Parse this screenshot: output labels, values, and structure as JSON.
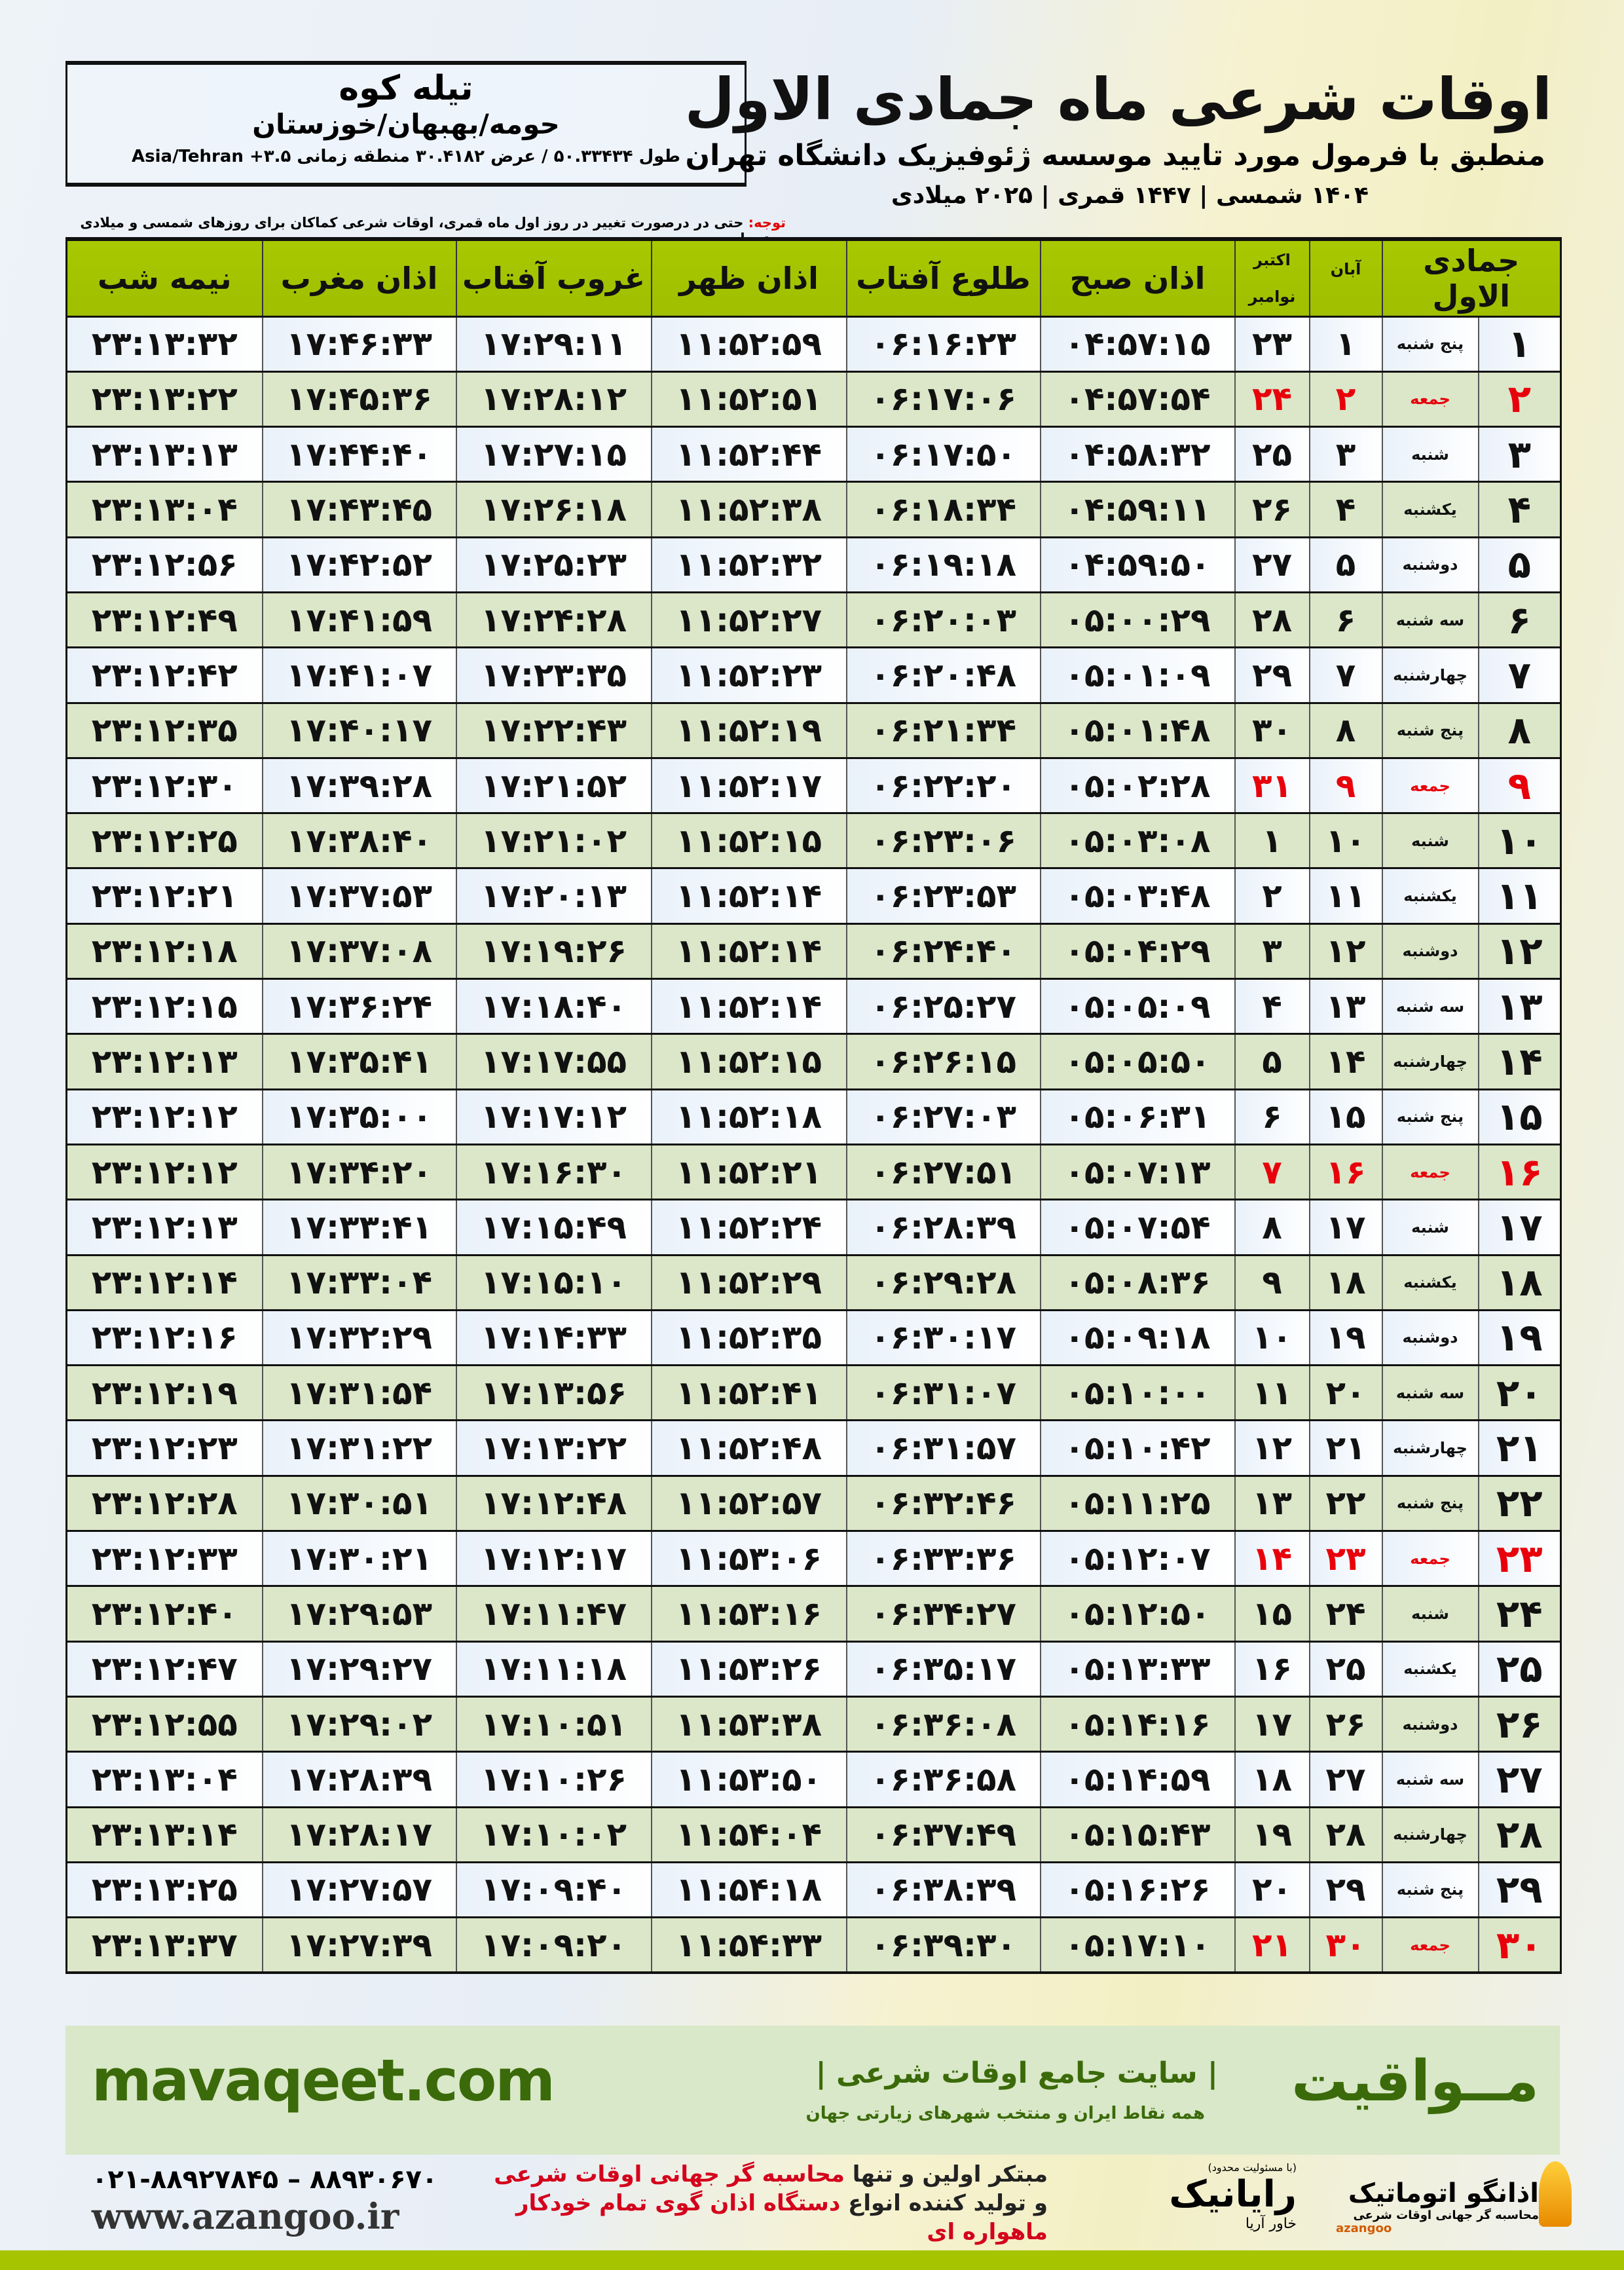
{
  "location": {
    "city": "تیله کوه",
    "region": "حومه/بهبهان/خوزستان",
    "coords": "طول ۵۰.۳۳۴۳۴ / عرض ۳۰.۴۱۸۲ منطقه زمانی ۳.۵+ Asia/Tehran"
  },
  "header": {
    "title": "اوقات شرعی ماه جمادی الاول",
    "subtitle": "منطبق با فرمول مورد تایید موسسه ژئوفیزیک دانشگاه تهران",
    "dateline": "۱۴۰۴ شمسی | ۱۴۴۷ قمری | ۲۰۲۵ میلادی"
  },
  "note": {
    "label": "توجه:",
    "text": " حتی در درصورت تغییر در روز اول ماه قمری، اوقات شرعی کماکان برای روزهای شمسی و میلادی معتبر است."
  },
  "table": {
    "columns": {
      "hijri": "جمادی الاول",
      "aban": "آبان",
      "greg_top": "اکتبر",
      "greg_bottom": "نوامبر",
      "fajr": "اذان صبح",
      "sunrise": "طلوع آفتاب",
      "dhuhr": "اذان ظهر",
      "sunset": "غروب آفتاب",
      "maghrib": "اذان مغرب",
      "midnight": "نیمه شب"
    },
    "holiday_color": "#e8000b",
    "rows": [
      [
        "۱",
        "پنج شنبه",
        "۱",
        "۲۳",
        "۰۴:۵۷:۱۵",
        "۰۶:۱۶:۲۳",
        "۱۱:۵۲:۵۹",
        "۱۷:۲۹:۱۱",
        "۱۷:۴۶:۳۳",
        "۲۳:۱۳:۳۲",
        false
      ],
      [
        "۲",
        "جمعه",
        "۲",
        "۲۴",
        "۰۴:۵۷:۵۴",
        "۰۶:۱۷:۰۶",
        "۱۱:۵۲:۵۱",
        "۱۷:۲۸:۱۲",
        "۱۷:۴۵:۳۶",
        "۲۳:۱۳:۲۲",
        true
      ],
      [
        "۳",
        "شنبه",
        "۳",
        "۲۵",
        "۰۴:۵۸:۳۲",
        "۰۶:۱۷:۵۰",
        "۱۱:۵۲:۴۴",
        "۱۷:۲۷:۱۵",
        "۱۷:۴۴:۴۰",
        "۲۳:۱۳:۱۳",
        false
      ],
      [
        "۴",
        "یکشنبه",
        "۴",
        "۲۶",
        "۰۴:۵۹:۱۱",
        "۰۶:۱۸:۳۴",
        "۱۱:۵۲:۳۸",
        "۱۷:۲۶:۱۸",
        "۱۷:۴۳:۴۵",
        "۲۳:۱۳:۰۴",
        false
      ],
      [
        "۵",
        "دوشنبه",
        "۵",
        "۲۷",
        "۰۴:۵۹:۵۰",
        "۰۶:۱۹:۱۸",
        "۱۱:۵۲:۳۲",
        "۱۷:۲۵:۲۳",
        "۱۷:۴۲:۵۲",
        "۲۳:۱۲:۵۶",
        false
      ],
      [
        "۶",
        "سه شنبه",
        "۶",
        "۲۸",
        "۰۵:۰۰:۲۹",
        "۰۶:۲۰:۰۳",
        "۱۱:۵۲:۲۷",
        "۱۷:۲۴:۲۸",
        "۱۷:۴۱:۵۹",
        "۲۳:۱۲:۴۹",
        false
      ],
      [
        "۷",
        "چهارشنبه",
        "۷",
        "۲۹",
        "۰۵:۰۱:۰۹",
        "۰۶:۲۰:۴۸",
        "۱۱:۵۲:۲۳",
        "۱۷:۲۳:۳۵",
        "۱۷:۴۱:۰۷",
        "۲۳:۱۲:۴۲",
        false
      ],
      [
        "۸",
        "پنج شنبه",
        "۸",
        "۳۰",
        "۰۵:۰۱:۴۸",
        "۰۶:۲۱:۳۴",
        "۱۱:۵۲:۱۹",
        "۱۷:۲۲:۴۳",
        "۱۷:۴۰:۱۷",
        "۲۳:۱۲:۳۵",
        false
      ],
      [
        "۹",
        "جمعه",
        "۹",
        "۳۱",
        "۰۵:۰۲:۲۸",
        "۰۶:۲۲:۲۰",
        "۱۱:۵۲:۱۷",
        "۱۷:۲۱:۵۲",
        "۱۷:۳۹:۲۸",
        "۲۳:۱۲:۳۰",
        true
      ],
      [
        "۱۰",
        "شنبه",
        "۱۰",
        "۱",
        "۰۵:۰۳:۰۸",
        "۰۶:۲۳:۰۶",
        "۱۱:۵۲:۱۵",
        "۱۷:۲۱:۰۲",
        "۱۷:۳۸:۴۰",
        "۲۳:۱۲:۲۵",
        false
      ],
      [
        "۱۱",
        "یکشنبه",
        "۱۱",
        "۲",
        "۰۵:۰۳:۴۸",
        "۰۶:۲۳:۵۳",
        "۱۱:۵۲:۱۴",
        "۱۷:۲۰:۱۳",
        "۱۷:۳۷:۵۳",
        "۲۳:۱۲:۲۱",
        false
      ],
      [
        "۱۲",
        "دوشنبه",
        "۱۲",
        "۳",
        "۰۵:۰۴:۲۹",
        "۰۶:۲۴:۴۰",
        "۱۱:۵۲:۱۴",
        "۱۷:۱۹:۲۶",
        "۱۷:۳۷:۰۸",
        "۲۳:۱۲:۱۸",
        false
      ],
      [
        "۱۳",
        "سه شنبه",
        "۱۳",
        "۴",
        "۰۵:۰۵:۰۹",
        "۰۶:۲۵:۲۷",
        "۱۱:۵۲:۱۴",
        "۱۷:۱۸:۴۰",
        "۱۷:۳۶:۲۴",
        "۲۳:۱۲:۱۵",
        false
      ],
      [
        "۱۴",
        "چهارشنبه",
        "۱۴",
        "۵",
        "۰۵:۰۵:۵۰",
        "۰۶:۲۶:۱۵",
        "۱۱:۵۲:۱۵",
        "۱۷:۱۷:۵۵",
        "۱۷:۳۵:۴۱",
        "۲۳:۱۲:۱۳",
        false
      ],
      [
        "۱۵",
        "پنج شنبه",
        "۱۵",
        "۶",
        "۰۵:۰۶:۳۱",
        "۰۶:۲۷:۰۳",
        "۱۱:۵۲:۱۸",
        "۱۷:۱۷:۱۲",
        "۱۷:۳۵:۰۰",
        "۲۳:۱۲:۱۲",
        false
      ],
      [
        "۱۶",
        "جمعه",
        "۱۶",
        "۷",
        "۰۵:۰۷:۱۳",
        "۰۶:۲۷:۵۱",
        "۱۱:۵۲:۲۱",
        "۱۷:۱۶:۳۰",
        "۱۷:۳۴:۲۰",
        "۲۳:۱۲:۱۲",
        true
      ],
      [
        "۱۷",
        "شنبه",
        "۱۷",
        "۸",
        "۰۵:۰۷:۵۴",
        "۰۶:۲۸:۳۹",
        "۱۱:۵۲:۲۴",
        "۱۷:۱۵:۴۹",
        "۱۷:۳۳:۴۱",
        "۲۳:۱۲:۱۳",
        false
      ],
      [
        "۱۸",
        "یکشنبه",
        "۱۸",
        "۹",
        "۰۵:۰۸:۳۶",
        "۰۶:۲۹:۲۸",
        "۱۱:۵۲:۲۹",
        "۱۷:۱۵:۱۰",
        "۱۷:۳۳:۰۴",
        "۲۳:۱۲:۱۴",
        false
      ],
      [
        "۱۹",
        "دوشنبه",
        "۱۹",
        "۱۰",
        "۰۵:۰۹:۱۸",
        "۰۶:۳۰:۱۷",
        "۱۱:۵۲:۳۵",
        "۱۷:۱۴:۳۳",
        "۱۷:۳۲:۲۹",
        "۲۳:۱۲:۱۶",
        false
      ],
      [
        "۲۰",
        "سه شنبه",
        "۲۰",
        "۱۱",
        "۰۵:۱۰:۰۰",
        "۰۶:۳۱:۰۷",
        "۱۱:۵۲:۴۱",
        "۱۷:۱۳:۵۶",
        "۱۷:۳۱:۵۴",
        "۲۳:۱۲:۱۹",
        false
      ],
      [
        "۲۱",
        "چهارشنبه",
        "۲۱",
        "۱۲",
        "۰۵:۱۰:۴۲",
        "۰۶:۳۱:۵۷",
        "۱۱:۵۲:۴۸",
        "۱۷:۱۳:۲۲",
        "۱۷:۳۱:۲۲",
        "۲۳:۱۲:۲۳",
        false
      ],
      [
        "۲۲",
        "پنج شنبه",
        "۲۲",
        "۱۳",
        "۰۵:۱۱:۲۵",
        "۰۶:۳۲:۴۶",
        "۱۱:۵۲:۵۷",
        "۱۷:۱۲:۴۸",
        "۱۷:۳۰:۵۱",
        "۲۳:۱۲:۲۸",
        false
      ],
      [
        "۲۳",
        "جمعه",
        "۲۳",
        "۱۴",
        "۰۵:۱۲:۰۷",
        "۰۶:۳۳:۳۶",
        "۱۱:۵۳:۰۶",
        "۱۷:۱۲:۱۷",
        "۱۷:۳۰:۲۱",
        "۲۳:۱۲:۳۳",
        true
      ],
      [
        "۲۴",
        "شنبه",
        "۲۴",
        "۱۵",
        "۰۵:۱۲:۵۰",
        "۰۶:۳۴:۲۷",
        "۱۱:۵۳:۱۶",
        "۱۷:۱۱:۴۷",
        "۱۷:۲۹:۵۳",
        "۲۳:۱۲:۴۰",
        false
      ],
      [
        "۲۵",
        "یکشنبه",
        "۲۵",
        "۱۶",
        "۰۵:۱۳:۳۳",
        "۰۶:۳۵:۱۷",
        "۱۱:۵۳:۲۶",
        "۱۷:۱۱:۱۸",
        "۱۷:۲۹:۲۷",
        "۲۳:۱۲:۴۷",
        false
      ],
      [
        "۲۶",
        "دوشنبه",
        "۲۶",
        "۱۷",
        "۰۵:۱۴:۱۶",
        "۰۶:۳۶:۰۸",
        "۱۱:۵۳:۳۸",
        "۱۷:۱۰:۵۱",
        "۱۷:۲۹:۰۲",
        "۲۳:۱۲:۵۵",
        false
      ],
      [
        "۲۷",
        "سه شنبه",
        "۲۷",
        "۱۸",
        "۰۵:۱۴:۵۹",
        "۰۶:۳۶:۵۸",
        "۱۱:۵۳:۵۰",
        "۱۷:۱۰:۲۶",
        "۱۷:۲۸:۳۹",
        "۲۳:۱۳:۰۴",
        false
      ],
      [
        "۲۸",
        "چهارشنبه",
        "۲۸",
        "۱۹",
        "۰۵:۱۵:۴۳",
        "۰۶:۳۷:۴۹",
        "۱۱:۵۴:۰۴",
        "۱۷:۱۰:۰۲",
        "۱۷:۲۸:۱۷",
        "۲۳:۱۳:۱۴",
        false
      ],
      [
        "۲۹",
        "پنج شنبه",
        "۲۹",
        "۲۰",
        "۰۵:۱۶:۲۶",
        "۰۶:۳۸:۳۹",
        "۱۱:۵۴:۱۸",
        "۱۷:۰۹:۴۰",
        "۱۷:۲۷:۵۷",
        "۲۳:۱۳:۲۵",
        false
      ],
      [
        "۳۰",
        "جمعه",
        "۳۰",
        "۲۱",
        "۰۵:۱۷:۱۰",
        "۰۶:۳۹:۳۰",
        "۱۱:۵۴:۳۳",
        "۱۷:۰۹:۲۰",
        "۱۷:۲۷:۳۹",
        "۲۳:۱۳:۳۷",
        true
      ]
    ]
  },
  "banner": {
    "site": "mavaqeet.com",
    "brand": "مــواقیت",
    "tagline": "| سایت جامع اوقات شرعی |",
    "tagline2": "همه نقاط ایران و منتخب شهرهای زیارتی جهان",
    "color": "#3b6a0a"
  },
  "footer": {
    "phone": "۰۲۱-۸۸۹۲۷۸۴۵ – ۸۸۹۳۰۶۷۰",
    "web": "www.azangoo.ir",
    "line1_a": "مبتکر اولین و تنها ",
    "line1_b": "محاسبه گر جهانی اوقات شرعی",
    "line2_a": "و تولید کننده انواع ",
    "line2_b": "دستگاه اذان گوی تمام خودکار ماهواره ای",
    "logo_rayanik": "رایانیک",
    "logo_rayanik_sub": "خاور آریا",
    "logo_rayanik_note": "(با مسئولیت محدود)",
    "logo_azangoo": "اذانگو اتوماتیک",
    "logo_azangoo_sub": "محاسبه گر جهانی اوقات شرعی",
    "logo_azangoo_en": "azangoo"
  }
}
